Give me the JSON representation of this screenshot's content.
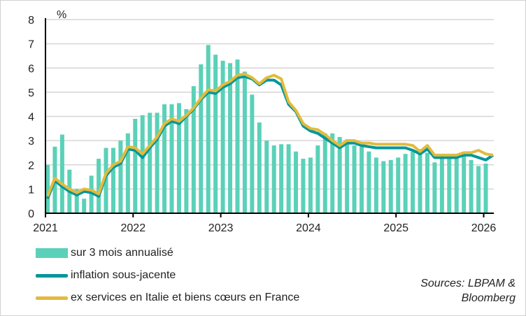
{
  "chart_data": {
    "type": "bar+line",
    "unit_label": "%",
    "ylim": [
      0,
      8
    ],
    "yticks": [
      "0",
      "1",
      "2",
      "3",
      "4",
      "5",
      "6",
      "7",
      "8"
    ],
    "xticks": [
      "2021",
      "2022",
      "2023",
      "2024",
      "2025",
      "2026"
    ],
    "x_start": "2021-01",
    "x_frequency": "monthly",
    "grid": true,
    "legend_position": "bottom-left",
    "colors": {
      "bars": "#5ad1b8",
      "core": "#00969b",
      "ex": "#e2bb3c"
    },
    "series": [
      {
        "name": "sur 3 mois annualisé",
        "type": "bar",
        "values": [
          2.0,
          2.75,
          3.25,
          1.8,
          1.0,
          0.6,
          1.55,
          2.25,
          2.7,
          2.7,
          3.0,
          3.3,
          3.9,
          4.05,
          4.15,
          4.15,
          4.5,
          4.5,
          4.55,
          4.3,
          5.25,
          6.15,
          6.95,
          6.55,
          6.3,
          6.2,
          6.35,
          5.85,
          4.9,
          3.75,
          3.0,
          2.8,
          2.85,
          2.85,
          2.55,
          2.25,
          2.3,
          2.8,
          3.3,
          3.3,
          3.15,
          3.05,
          2.8,
          2.75,
          2.55,
          2.3,
          2.15,
          2.2,
          2.3,
          2.45,
          2.55,
          2.65,
          2.5,
          2.1,
          2.25,
          2.4,
          2.4,
          2.4,
          2.2,
          1.95,
          2.05
        ]
      },
      {
        "name": "inflation sous-jacente",
        "type": "line",
        "values": [
          0.6,
          1.35,
          1.1,
          0.9,
          0.75,
          0.9,
          0.85,
          0.7,
          1.55,
          1.9,
          2.05,
          2.65,
          2.6,
          2.3,
          2.7,
          3.05,
          3.6,
          3.8,
          3.7,
          4.0,
          4.3,
          4.7,
          5.0,
          4.95,
          5.2,
          5.35,
          5.6,
          5.65,
          5.55,
          5.3,
          5.5,
          5.5,
          5.3,
          4.5,
          4.2,
          3.6,
          3.4,
          3.3,
          3.1,
          2.9,
          2.7,
          2.9,
          2.9,
          2.8,
          2.75,
          2.7,
          2.7,
          2.7,
          2.7,
          2.7,
          2.6,
          2.45,
          2.65,
          2.3,
          2.3,
          2.3,
          2.3,
          2.4,
          2.4,
          2.3,
          2.2,
          2.4
        ]
      },
      {
        "name": "ex services en Italie et biens cœurs en France",
        "type": "line",
        "values": [
          0.7,
          1.45,
          1.2,
          1.0,
          0.85,
          1.0,
          0.95,
          0.8,
          1.65,
          2.0,
          2.15,
          2.75,
          2.7,
          2.45,
          2.8,
          3.15,
          3.7,
          3.9,
          3.8,
          4.05,
          4.35,
          4.75,
          5.1,
          5.05,
          5.3,
          5.45,
          5.7,
          5.75,
          5.6,
          5.35,
          5.6,
          5.7,
          5.55,
          4.6,
          4.25,
          3.7,
          3.5,
          3.45,
          3.25,
          3.0,
          2.8,
          3.0,
          3.0,
          2.9,
          2.9,
          2.85,
          2.85,
          2.85,
          2.85,
          2.85,
          2.8,
          2.55,
          2.8,
          2.4,
          2.4,
          2.4,
          2.4,
          2.5,
          2.5,
          2.6,
          2.45,
          2.4
        ]
      }
    ]
  },
  "sources": {
    "line1": "Sources: LBPAM &",
    "line2": "Bloomberg"
  }
}
